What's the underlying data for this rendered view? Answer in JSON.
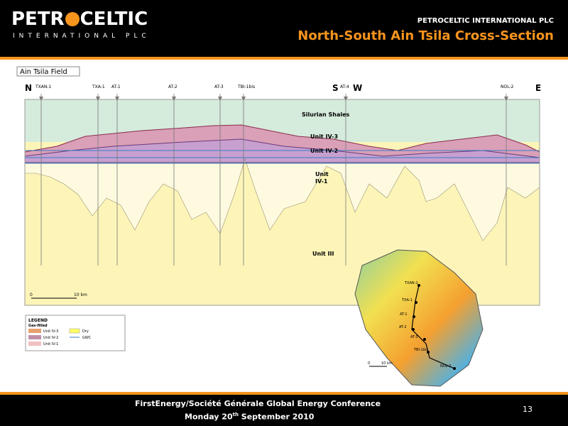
{
  "header": {
    "logo_left": "PETR",
    "logo_right": "CELTIC",
    "logo_sub": "INTERNATIONAL PLC",
    "company": "PETROCELTIC INTERNATIONAL PLC",
    "title": "North-South Ain Tsila Cross-Section"
  },
  "section": {
    "field_label": "Ain Tsila Field",
    "directions": [
      "N",
      "S",
      "W",
      "E"
    ],
    "wells": [
      "TXAN-1",
      "TXA-1",
      "AT-1",
      "AT-2",
      "AT-3",
      "TBI-1bis",
      "AT-4",
      "NOL-2"
    ],
    "units": [
      "Silurian Shales",
      "Unit IV-3",
      "Unit IV-2",
      "Unit",
      "IV-1",
      "Unit III"
    ],
    "scale": [
      "0",
      "10 km"
    ]
  },
  "legend": {
    "title": "LEGEND",
    "group": "Gas-filled",
    "items": [
      "Unit IV-3",
      "Unit IV-2",
      "Unit IV-1",
      "Dry",
      "GWC"
    ]
  },
  "map": {
    "wells": [
      "TXAN-1",
      "TXA-1",
      "AT-1",
      "AT-2",
      "AT-3",
      "TBI-1bis",
      "NOL-2"
    ],
    "scale": [
      "0",
      "10 km"
    ]
  },
  "footer": {
    "conference": "FirstEnergy/Société Générale  Global Energy Conference",
    "date_prefix": "Monday 20",
    "date_sup": "th",
    "date_suffix": " September 2010",
    "page": "13"
  }
}
